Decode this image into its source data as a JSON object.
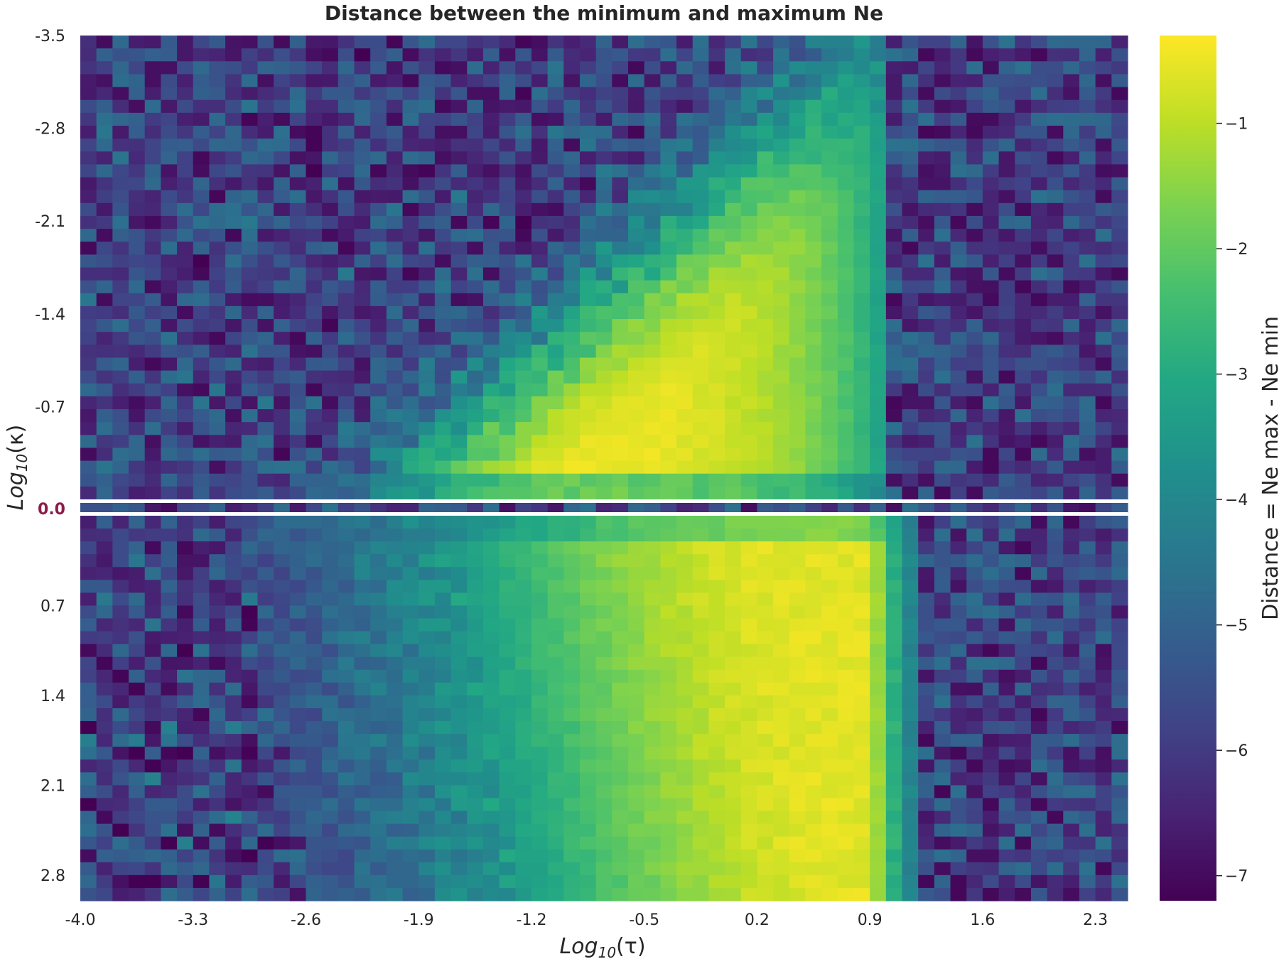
{
  "chart_data": {
    "type": "heatmap",
    "title": "Distance between the minimum and maximum Ne",
    "xlabel": {
      "base": "Log",
      "sub": "10",
      "arg": "(τ)"
    },
    "ylabel": {
      "base": "Log",
      "sub": "10",
      "arg": "(κ)"
    },
    "x_tick_labels": [
      "-4.0",
      "-3.3",
      "-2.6",
      "-1.9",
      "-1.2",
      "-0.5",
      "0.2",
      "0.9",
      "1.6",
      "2.3"
    ],
    "y_tick_labels_top": [
      "-3.5",
      "-2.8",
      "-2.1",
      "-1.4",
      "-0.7"
    ],
    "y_tick_label_highlight": "0.0",
    "y_tick_labels_bottom": [
      "0.7",
      "1.4",
      "2.1",
      "2.8"
    ],
    "x_range": [
      -4.0,
      2.5
    ],
    "y_range": [
      -3.5,
      3.0
    ],
    "grid": {
      "cols": 65,
      "rows_top": 36,
      "rows_bottom": 30
    },
    "colorbar": {
      "label": "Distance = Ne max - Ne min",
      "ticks": [
        "−1",
        "−2",
        "−3",
        "−4",
        "−5",
        "−6",
        "−7"
      ],
      "tick_values": [
        -1,
        -2,
        -3,
        -4,
        -5,
        -6,
        -7
      ],
      "range": [
        -7.2,
        -0.3
      ],
      "colormap": "viridis"
    },
    "regions": {
      "upper_half_kappa_negative": "high values (yellow, ≈ -0.3) for log τ between about -3 and 0.6; fading to green towards log τ 0.9; noisy low values (≈ -5 to -7) for log τ above 1.0 and at small log τ with log κ near 0",
      "kappa_zero_row": "noisy low values (≈ -5 to -7) across all τ",
      "lower_half_kappa_positive": "values rising from ≈ -6 at log τ -4 to ≈ -0.6 at log τ about 0.5, sharp drop near log τ 1.1, noisy low values (≈ -5 to -7) for log τ above 1.2"
    },
    "highlight_color": "#8c1c4a",
    "separator_color": "#ffffff"
  }
}
